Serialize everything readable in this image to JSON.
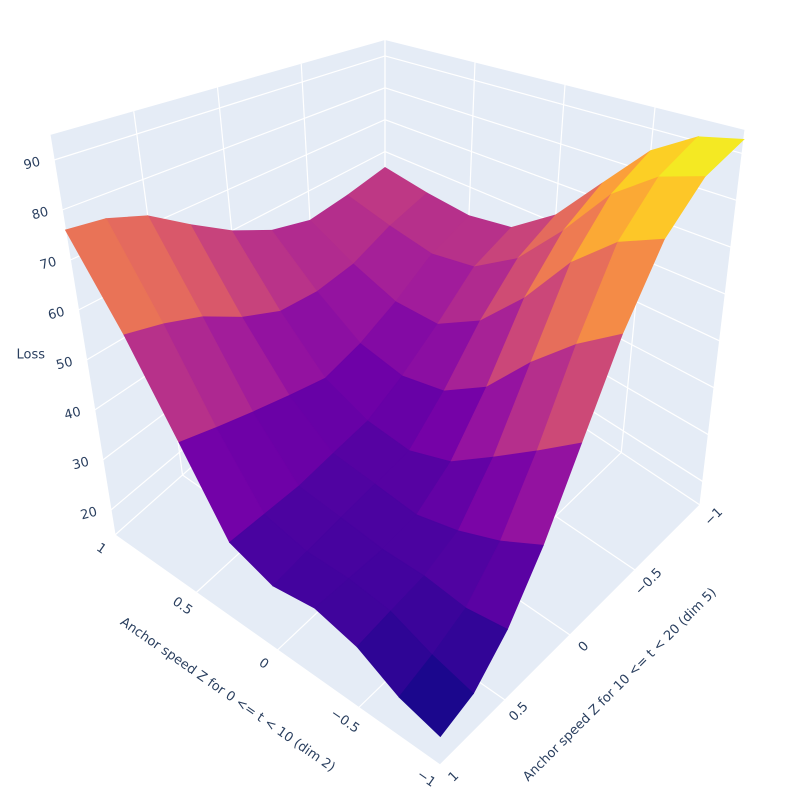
{
  "chart_data": {
    "type": "surface",
    "x_title": "Anchor speed Z for 0 <= t < 10 (dim 2)",
    "y_title": "Anchor speed Z for 10 <= t < 20 (dim 5)",
    "z_title": "Loss",
    "x": [
      -1,
      -0.75,
      -0.5,
      -0.25,
      0,
      0.25,
      0.5,
      0.75,
      1
    ],
    "y": [
      -1,
      -0.75,
      -0.5,
      -0.25,
      0,
      0.25,
      0.5,
      0.75,
      1
    ],
    "z": [
      [
        93,
        91,
        85,
        74,
        62,
        54,
        52,
        53,
        55
      ],
      [
        90,
        87,
        80,
        68,
        57,
        50,
        48,
        50,
        53
      ],
      [
        82,
        78,
        70,
        58,
        48,
        42,
        42,
        46,
        52
      ],
      [
        68,
        62,
        54,
        44,
        38,
        36,
        38,
        45,
        55
      ],
      [
        52,
        46,
        40,
        34,
        31,
        32,
        36,
        46,
        60
      ],
      [
        38,
        34,
        31,
        29,
        30,
        31,
        38,
        50,
        66
      ],
      [
        28,
        27,
        28,
        28,
        29,
        30,
        40,
        55,
        72
      ],
      [
        22,
        24,
        27,
        28,
        28,
        30,
        42,
        58,
        75
      ],
      [
        20,
        22,
        26,
        28,
        27,
        30,
        44,
        60,
        76
      ]
    ],
    "xlim": [
      -1,
      1
    ],
    "ylim": [
      -1,
      1
    ],
    "zlim": [
      15,
      95
    ],
    "xticks": [
      1,
      0.5,
      0,
      {
        "value": -0.5,
        "label": "−0.5"
      },
      {
        "value": -1,
        "label": "−1"
      }
    ],
    "yticks": [
      {
        "value": -1,
        "label": "−1"
      },
      {
        "value": -0.5,
        "label": "−0.5"
      },
      0,
      0.5,
      1
    ],
    "zticks": [
      20,
      30,
      40,
      50,
      60,
      70,
      80,
      90
    ],
    "colorscale": [
      "#0d0887",
      "#46039f",
      "#7201a8",
      "#9c179e",
      "#bd3786",
      "#d8576b",
      "#ed7953",
      "#fb9f3a",
      "#fdca26",
      "#f0f921"
    ],
    "grid": true
  }
}
